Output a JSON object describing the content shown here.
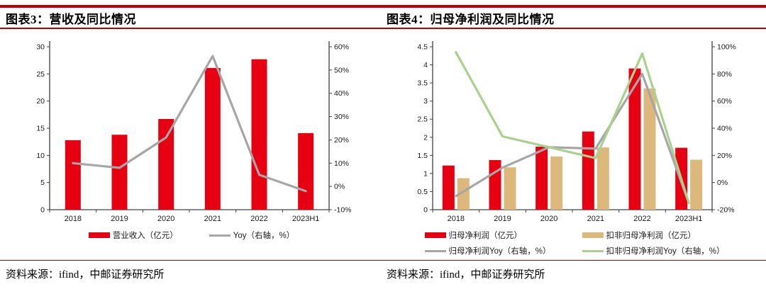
{
  "header": {
    "left_title": "图表3：营收及同比情况",
    "right_title": "图表4：归母净利润及同比情况"
  },
  "footer": {
    "left_source": "资料来源：ifind，中邮证券研究所",
    "right_source": "资料来源：ifind，中邮证券研究所"
  },
  "colors": {
    "accent_rule": "#c00000",
    "bar_red": "#e60012",
    "bar_tan": "#ddb87c",
    "line_gray": "#a6a6a6",
    "line_green": "#a9d18e"
  },
  "chart_data": [
    {
      "type": "bar",
      "title": "图表3：营收及同比情况",
      "categories": [
        "2018",
        "2019",
        "2020",
        "2021",
        "2022",
        "2023H1"
      ],
      "series": [
        {
          "name": "营业收入（亿元）",
          "type": "bar",
          "axis": "left",
          "color": "#e60012",
          "values": [
            12.8,
            13.8,
            16.7,
            26.1,
            27.7,
            14.1
          ]
        },
        {
          "name": "Yoy（右轴，%）",
          "type": "line",
          "axis": "right",
          "color": "#a6a6a6",
          "values": [
            10,
            8,
            21,
            56,
            5,
            -2
          ]
        }
      ],
      "left_axis": {
        "min": 0,
        "max": 30,
        "step": 5,
        "suffix": ""
      },
      "right_axis": {
        "min": -10,
        "max": 60,
        "step": 10,
        "suffix": "%"
      },
      "grid": false,
      "legend_position": "bottom"
    },
    {
      "type": "bar",
      "title": "图表4：归母净利润及同比情况",
      "categories": [
        "2018",
        "2019",
        "2020",
        "2021",
        "2022",
        "2023H1"
      ],
      "series": [
        {
          "name": "归母净利润（亿元）",
          "type": "bar",
          "axis": "left",
          "color": "#e60012",
          "values": [
            1.22,
            1.37,
            1.74,
            2.16,
            3.9,
            1.71
          ]
        },
        {
          "name": "扣非归母净利润（亿元）",
          "type": "bar",
          "axis": "left",
          "color": "#ddb87c",
          "values": [
            0.87,
            1.17,
            1.47,
            1.72,
            3.35,
            1.38
          ]
        },
        {
          "name": "归母净利润Yoy（右轴，%）",
          "type": "line",
          "axis": "right",
          "color": "#a6a6a6",
          "values": [
            -10,
            11,
            26,
            25,
            80,
            -15
          ]
        },
        {
          "name": "扣非归母净利润Yoy（右轴，%）",
          "type": "line",
          "axis": "right",
          "color": "#a9d18e",
          "values": [
            96,
            34,
            26,
            18,
            95,
            -15
          ]
        }
      ],
      "left_axis": {
        "min": 0,
        "max": 4.5,
        "step": 0.5,
        "suffix": ""
      },
      "right_axis": {
        "min": -20,
        "max": 100,
        "step": 20,
        "suffix": "%"
      },
      "grid": false,
      "legend_position": "bottom"
    }
  ]
}
